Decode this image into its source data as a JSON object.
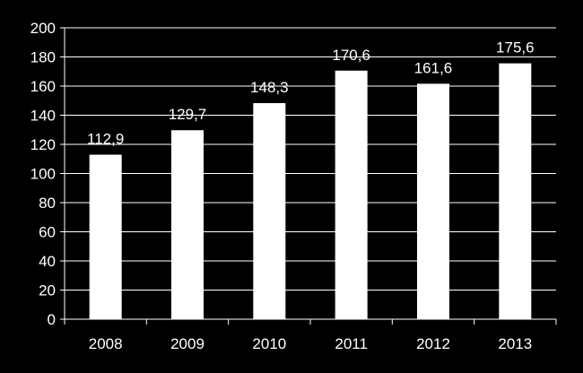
{
  "chart_data": {
    "type": "bar",
    "categories": [
      "2008",
      "2009",
      "2010",
      "2011",
      "2012",
      "2013"
    ],
    "values": [
      112.9,
      129.7,
      148.3,
      170.6,
      161.6,
      175.6
    ],
    "value_labels": [
      "112,9",
      "129,7",
      "148,3",
      "170,6",
      "161,6",
      "175,6"
    ],
    "title": "",
    "xlabel": "",
    "ylabel": "",
    "ylim": [
      0,
      200
    ],
    "yticks": [
      "0",
      "20",
      "40",
      "60",
      "80",
      "100",
      "120",
      "140",
      "160",
      "180",
      "200"
    ],
    "grid": true,
    "legend": "none",
    "colors": {
      "background": "#000000",
      "bar": "#ffffff",
      "grid": "#ffffff",
      "text": "#ffffff"
    }
  }
}
